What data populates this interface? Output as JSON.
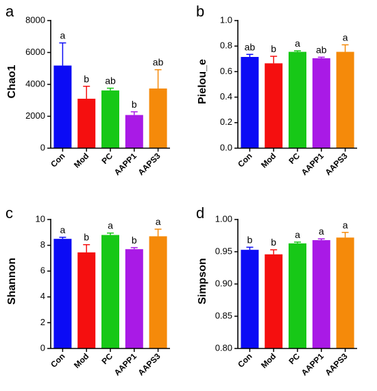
{
  "colors": [
    "#0b0bf5",
    "#f50f0f",
    "#17c817",
    "#a91ae6",
    "#f58a0a"
  ],
  "chart_data": [
    {
      "panel": "a",
      "type": "bar",
      "categories": [
        "Con",
        "Mod",
        "PC",
        "AAPP1",
        "AAPS3"
      ],
      "ylabel": "Chao1",
      "ylim": [
        0,
        8000
      ],
      "yticks": [
        0,
        2000,
        4000,
        6000,
        8000
      ],
      "yticklabels": [
        "0",
        "2000",
        "4000",
        "6000",
        "8000"
      ],
      "values": [
        5180,
        3100,
        3620,
        2080,
        3740
      ],
      "errors": [
        1420,
        780,
        140,
        200,
        1180
      ],
      "labels": [
        "a",
        "b",
        "ab",
        "b",
        "ab"
      ]
    },
    {
      "panel": "b",
      "type": "bar",
      "categories": [
        "Con",
        "Mod",
        "PC",
        "AAPP1",
        "AAPS3"
      ],
      "ylabel": "Pielou_e",
      "ylim": [
        0,
        1.0
      ],
      "yticks": [
        0,
        0.2,
        0.4,
        0.6,
        0.8,
        1.0
      ],
      "yticklabels": [
        "0.0",
        "0.2",
        "0.4",
        "0.6",
        "0.8",
        "1.0"
      ],
      "values": [
        0.715,
        0.665,
        0.755,
        0.705,
        0.755
      ],
      "errors": [
        0.02,
        0.055,
        0.008,
        0.008,
        0.055
      ],
      "labels": [
        "ab",
        "b",
        "a",
        "ab",
        "a"
      ]
    },
    {
      "panel": "c",
      "type": "bar",
      "categories": [
        "Con",
        "Mod",
        "PC",
        "AAPP1",
        "AAPS3"
      ],
      "ylabel": "Shannon",
      "ylim": [
        0,
        10
      ],
      "yticks": [
        0,
        2,
        4,
        6,
        8,
        10
      ],
      "yticklabels": [
        "0",
        "2",
        "4",
        "6",
        "8",
        "10"
      ],
      "values": [
        8.5,
        7.45,
        8.8,
        7.7,
        8.7
      ],
      "errors": [
        0.12,
        0.6,
        0.15,
        0.12,
        0.55
      ],
      "labels": [
        "a",
        "b",
        "a",
        "b",
        "a"
      ]
    },
    {
      "panel": "d",
      "type": "bar",
      "categories": [
        "Con",
        "Mod",
        "PC",
        "AAPP1",
        "AAPS3"
      ],
      "ylabel": "Simpson",
      "ylim": [
        0.8,
        1.0
      ],
      "yticks": [
        0.8,
        0.85,
        0.9,
        0.95,
        1.0
      ],
      "yticklabels": [
        "0.80",
        "0.85",
        "0.90",
        "0.95",
        "1.00"
      ],
      "values": [
        0.953,
        0.946,
        0.963,
        0.968,
        0.972
      ],
      "errors": [
        0.004,
        0.007,
        0.002,
        0.002,
        0.008
      ],
      "labels": [
        "b",
        "b",
        "a",
        "a",
        "a"
      ]
    }
  ]
}
